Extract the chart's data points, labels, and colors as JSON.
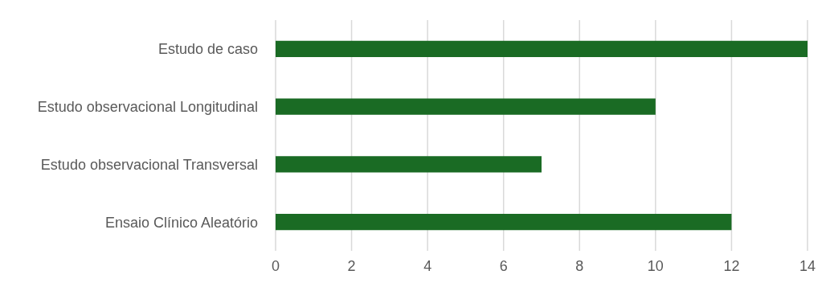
{
  "chart_data": {
    "type": "bar",
    "orientation": "horizontal",
    "categories": [
      "Estudo de caso",
      "Estudo observacional Longitudinal",
      "Estudo observacional Transversal",
      "Ensaio Clínico Aleatório"
    ],
    "values": [
      14,
      10,
      7,
      12
    ],
    "color": "#1a6b24",
    "xlim": [
      0,
      14
    ],
    "xticks": [
      0,
      2,
      4,
      6,
      8,
      10,
      12,
      14
    ],
    "grid": "x"
  }
}
